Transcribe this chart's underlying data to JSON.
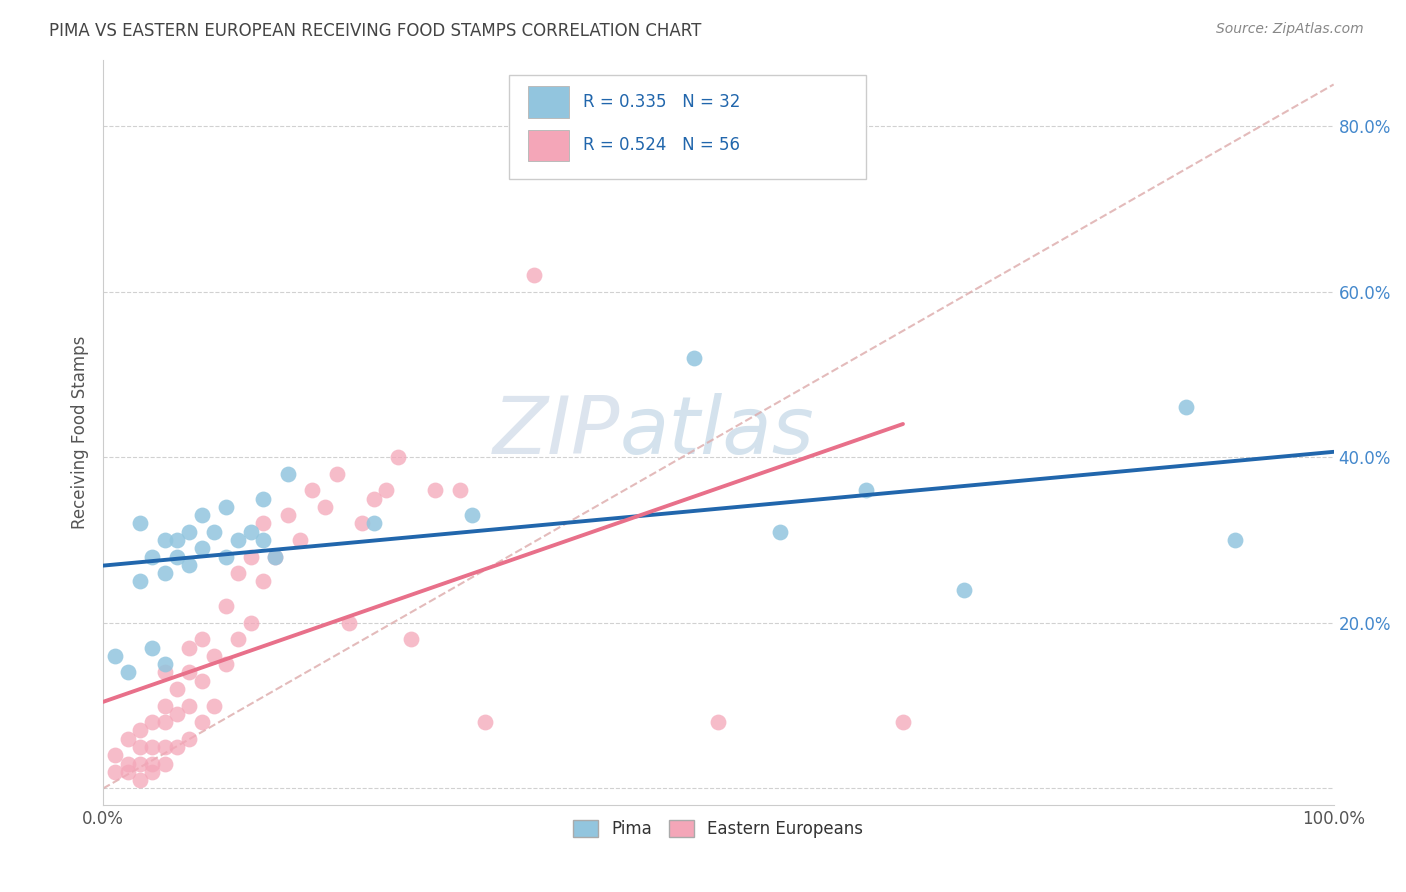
{
  "title": "PIMA VS EASTERN EUROPEAN RECEIVING FOOD STAMPS CORRELATION CHART",
  "source": "Source: ZipAtlas.com",
  "ylabel": "Receiving Food Stamps",
  "xlim": [
    0.0,
    1.0
  ],
  "ylim": [
    -0.02,
    0.88
  ],
  "x_ticks": [
    0.0,
    0.1,
    0.2,
    0.3,
    0.4,
    0.5,
    0.6,
    0.7,
    0.8,
    0.9,
    1.0
  ],
  "x_tick_labels_left": "0.0%",
  "x_tick_labels_right": "100.0%",
  "y_ticks": [
    0.0,
    0.2,
    0.4,
    0.6,
    0.8
  ],
  "y_tick_labels": [
    "",
    "20.0%",
    "40.0%",
    "60.0%",
    "80.0%"
  ],
  "pima_R": 0.335,
  "pima_N": 32,
  "eastern_R": 0.524,
  "eastern_N": 56,
  "pima_color": "#92c5de",
  "eastern_color": "#f4a6b8",
  "pima_line_color": "#2166ac",
  "eastern_line_color": "#e8708a",
  "ref_line_color": "#e8708a",
  "watermark_color": "#c8d8e8",
  "background_color": "#ffffff",
  "pima_x": [
    0.01,
    0.02,
    0.03,
    0.03,
    0.04,
    0.04,
    0.05,
    0.05,
    0.05,
    0.06,
    0.06,
    0.07,
    0.07,
    0.08,
    0.08,
    0.09,
    0.1,
    0.1,
    0.11,
    0.12,
    0.13,
    0.13,
    0.14,
    0.15,
    0.22,
    0.3,
    0.48,
    0.55,
    0.62,
    0.7,
    0.88,
    0.92
  ],
  "pima_y": [
    0.16,
    0.14,
    0.25,
    0.32,
    0.17,
    0.28,
    0.15,
    0.26,
    0.3,
    0.28,
    0.3,
    0.27,
    0.31,
    0.29,
    0.33,
    0.31,
    0.28,
    0.34,
    0.3,
    0.31,
    0.3,
    0.35,
    0.28,
    0.38,
    0.32,
    0.33,
    0.52,
    0.31,
    0.36,
    0.24,
    0.46,
    0.3
  ],
  "eastern_x": [
    0.01,
    0.01,
    0.02,
    0.02,
    0.02,
    0.03,
    0.03,
    0.03,
    0.03,
    0.04,
    0.04,
    0.04,
    0.04,
    0.05,
    0.05,
    0.05,
    0.05,
    0.05,
    0.06,
    0.06,
    0.06,
    0.07,
    0.07,
    0.07,
    0.07,
    0.08,
    0.08,
    0.08,
    0.09,
    0.09,
    0.1,
    0.1,
    0.11,
    0.11,
    0.12,
    0.12,
    0.13,
    0.13,
    0.14,
    0.15,
    0.16,
    0.17,
    0.18,
    0.19,
    0.2,
    0.21,
    0.22,
    0.23,
    0.24,
    0.25,
    0.27,
    0.29,
    0.31,
    0.35,
    0.5,
    0.65
  ],
  "eastern_y": [
    0.02,
    0.04,
    0.02,
    0.03,
    0.06,
    0.01,
    0.03,
    0.05,
    0.07,
    0.02,
    0.03,
    0.05,
    0.08,
    0.03,
    0.05,
    0.08,
    0.1,
    0.14,
    0.05,
    0.09,
    0.12,
    0.06,
    0.1,
    0.14,
    0.17,
    0.08,
    0.13,
    0.18,
    0.1,
    0.16,
    0.15,
    0.22,
    0.18,
    0.26,
    0.2,
    0.28,
    0.25,
    0.32,
    0.28,
    0.33,
    0.3,
    0.36,
    0.34,
    0.38,
    0.2,
    0.32,
    0.35,
    0.36,
    0.4,
    0.18,
    0.36,
    0.36,
    0.08,
    0.62,
    0.08,
    0.08
  ]
}
